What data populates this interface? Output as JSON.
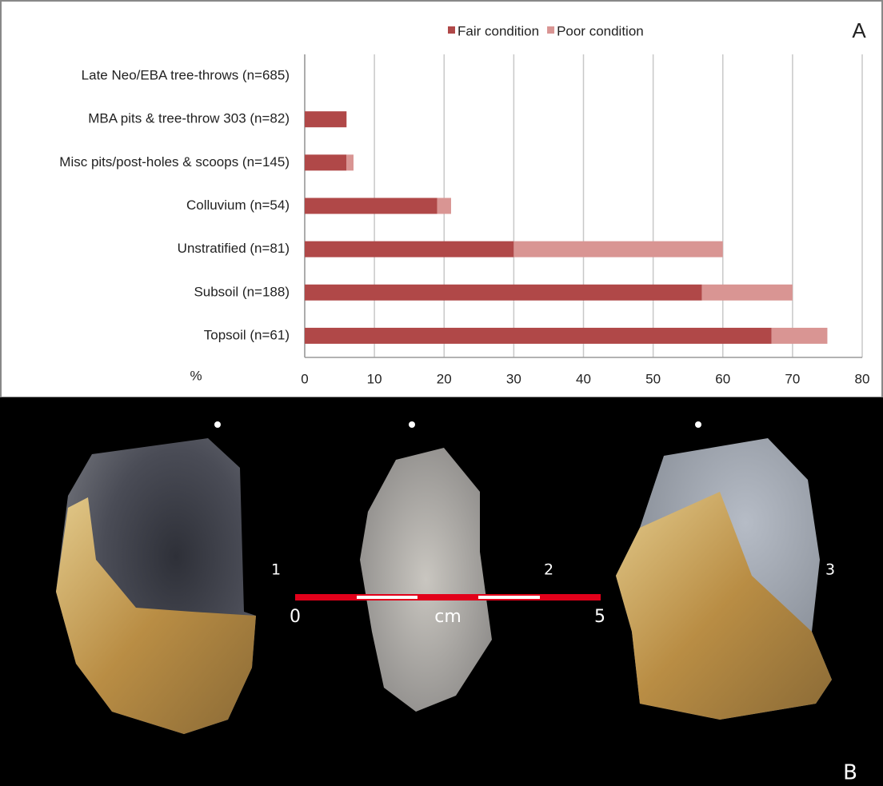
{
  "chart_data": {
    "type": "stacked-barh",
    "panel_label": "A",
    "categories": [
      "Late Neo/EBA tree-throws (n=685)",
      "MBA pits & tree-throw 303 (n=82)",
      "Misc pits/post-holes & scoops (n=145)",
      "Colluvium (n=54)",
      "Unstratified (n=81)",
      "Subsoil (n=188)",
      "Topsoil (n=61)"
    ],
    "series": [
      {
        "name": "Fair condition",
        "color": "#b04848",
        "values": [
          0,
          6,
          6,
          19,
          30,
          57,
          67
        ]
      },
      {
        "name": "Poor condition",
        "color": "#d99593",
        "values": [
          0,
          0,
          1,
          2,
          30,
          13,
          8
        ]
      }
    ],
    "xlabel": "%",
    "xlim": [
      0,
      80
    ],
    "xticks": [
      0,
      10,
      20,
      30,
      40,
      50,
      60,
      70,
      80
    ],
    "grid": true,
    "legend": "top"
  },
  "panel_b": {
    "label": "B",
    "specimens": [
      "1",
      "2",
      "3"
    ],
    "scale": {
      "start": "0",
      "unit": "cm",
      "end": "5"
    }
  }
}
